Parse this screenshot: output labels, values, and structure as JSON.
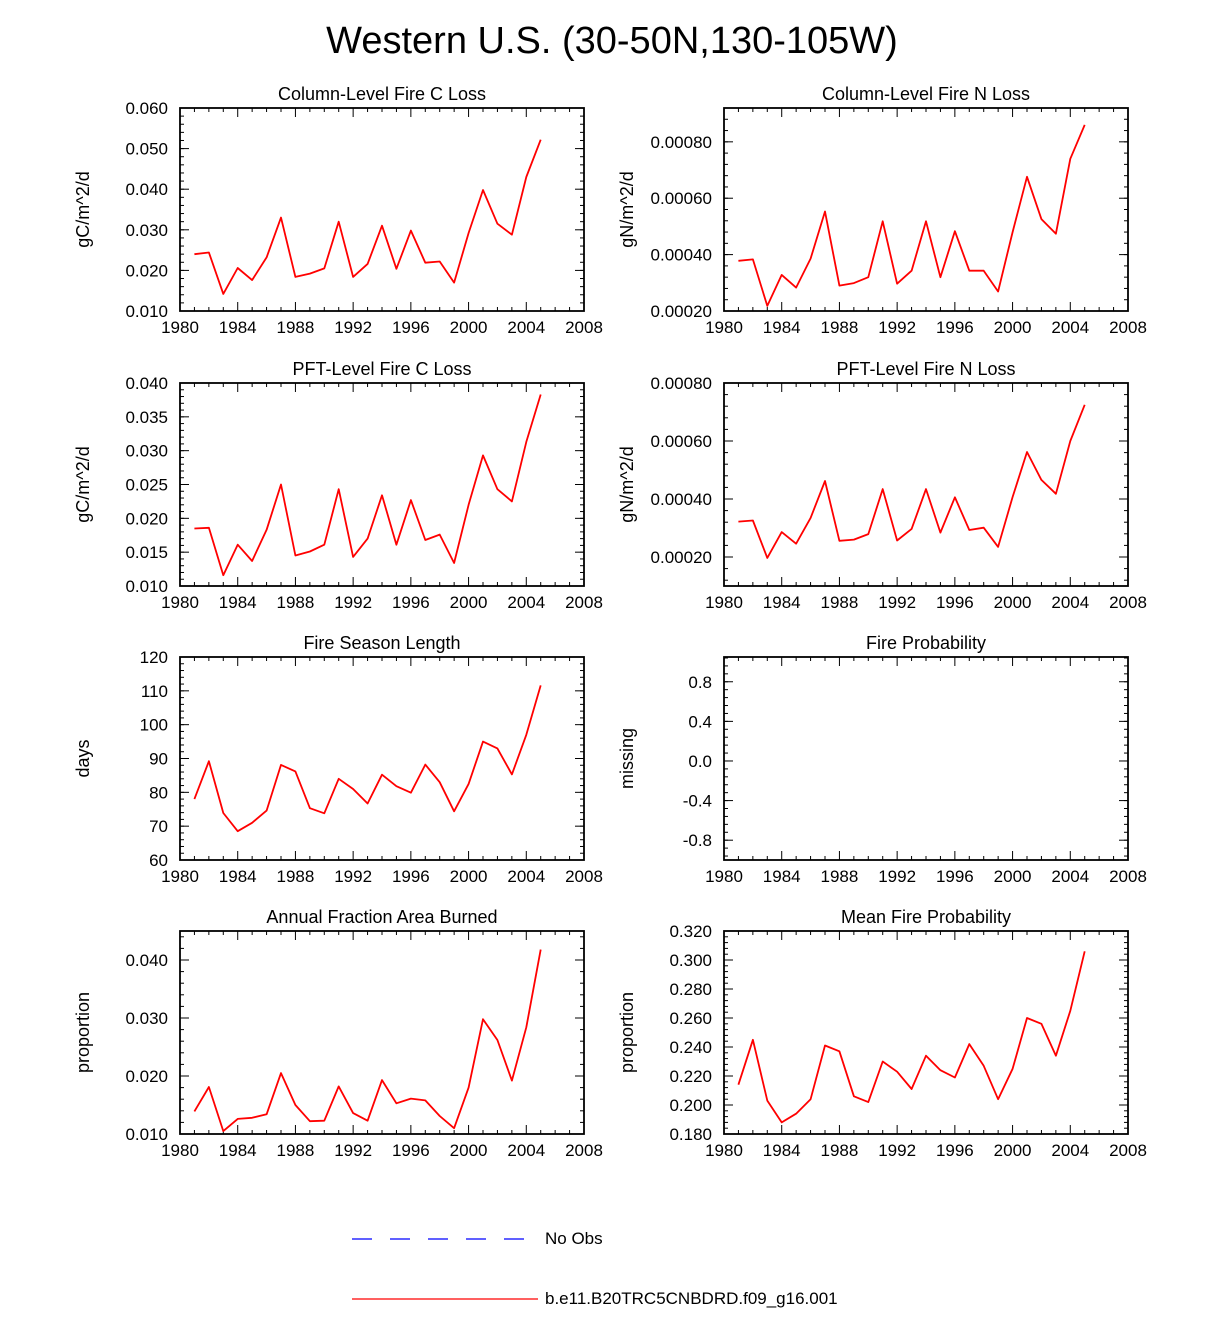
{
  "title": "Western U.S. (30-50N,130-105W)",
  "colors": {
    "model": "#ff0000",
    "obs": "#0000ff",
    "axis": "#000000"
  },
  "legend": [
    {
      "label": "No Obs",
      "color": "#0000ff",
      "style": "dashed"
    },
    {
      "label": "b.e11.B20TRC5CNBDRD.f09_g16.001",
      "color": "#ff0000",
      "style": "solid"
    }
  ],
  "chart_data": [
    {
      "type": "line",
      "title": "Column-Level Fire C Loss",
      "xlabel": "",
      "ylabel": "gC/m^2/d",
      "xlim": [
        1980,
        2008
      ],
      "ylim": [
        0.01,
        0.06
      ],
      "xticks": [
        "1980",
        "1984",
        "1988",
        "1992",
        "1996",
        "2000",
        "2004",
        "2008"
      ],
      "yticks": [
        "0.010",
        "0.020",
        "0.030",
        "0.040",
        "0.050",
        "0.060"
      ],
      "x": [
        1981,
        1982,
        1983,
        1984,
        1985,
        1986,
        1987,
        1988,
        1989,
        1990,
        1991,
        1992,
        1993,
        1994,
        1995,
        1996,
        1997,
        1998,
        1999,
        2000,
        2001,
        2002,
        2003,
        2004,
        2005
      ],
      "series": [
        {
          "name": "b.e11.B20TRC5CNBDRD.f09_g16.001",
          "values": [
            0.024,
            0.0244,
            0.0142,
            0.0206,
            0.0176,
            0.0232,
            0.033,
            0.0184,
            0.0192,
            0.0205,
            0.032,
            0.0184,
            0.0216,
            0.031,
            0.0204,
            0.0298,
            0.0219,
            0.0222,
            0.017,
            0.0292,
            0.0398,
            0.0315,
            0.0288,
            0.043,
            0.0522
          ]
        }
      ]
    },
    {
      "type": "line",
      "title": "Column-Level Fire N Loss",
      "xlabel": "",
      "ylabel": "gN/m^2/d",
      "xlim": [
        1980,
        2008
      ],
      "ylim": [
        0.0002,
        0.00092
      ],
      "xticks": [
        "1980",
        "1984",
        "1988",
        "1992",
        "1996",
        "2000",
        "2004",
        "2008"
      ],
      "yticks": [
        "0.00020",
        "0.00040",
        "0.00060",
        "0.00080"
      ],
      "x": [
        1981,
        1982,
        1983,
        1984,
        1985,
        1986,
        1987,
        1988,
        1989,
        1990,
        1991,
        1992,
        1993,
        1994,
        1995,
        1996,
        1997,
        1998,
        1999,
        2000,
        2001,
        2002,
        2003,
        2004,
        2005
      ],
      "series": [
        {
          "name": "b.e11.B20TRC5CNBDRD.f09_g16.001",
          "values": [
            0.000378,
            0.000383,
            0.000218,
            0.000328,
            0.000283,
            0.000386,
            0.000553,
            0.00029,
            0.000299,
            0.00032,
            0.000518,
            0.000297,
            0.000343,
            0.000518,
            0.00032,
            0.000483,
            0.000343,
            0.000343,
            0.000269,
            0.00048,
            0.000676,
            0.000526,
            0.000474,
            0.00074,
            0.00086
          ]
        }
      ]
    },
    {
      "type": "line",
      "title": "PFT-Level Fire C Loss",
      "xlabel": "",
      "ylabel": "gC/m^2/d",
      "xlim": [
        1980,
        2008
      ],
      "ylim": [
        0.01,
        0.04
      ],
      "xticks": [
        "1980",
        "1984",
        "1988",
        "1992",
        "1996",
        "2000",
        "2004",
        "2008"
      ],
      "yticks": [
        "0.010",
        "0.015",
        "0.020",
        "0.025",
        "0.030",
        "0.035",
        "0.040"
      ],
      "x": [
        1981,
        1982,
        1983,
        1984,
        1985,
        1986,
        1987,
        1988,
        1989,
        1990,
        1991,
        1992,
        1993,
        1994,
        1995,
        1996,
        1997,
        1998,
        1999,
        2000,
        2001,
        2002,
        2003,
        2004,
        2005
      ],
      "series": [
        {
          "name": "b.e11.B20TRC5CNBDRD.f09_g16.001",
          "values": [
            0.0185,
            0.0186,
            0.0116,
            0.0161,
            0.0137,
            0.0183,
            0.025,
            0.0145,
            0.0151,
            0.0161,
            0.0243,
            0.0143,
            0.017,
            0.0234,
            0.0161,
            0.0227,
            0.0168,
            0.0176,
            0.0134,
            0.022,
            0.0293,
            0.0243,
            0.0225,
            0.0313,
            0.0383
          ]
        }
      ]
    },
    {
      "type": "line",
      "title": "PFT-Level Fire N Loss",
      "xlabel": "",
      "ylabel": "gN/m^2/d",
      "xlim": [
        1980,
        2008
      ],
      "ylim": [
        0.0001,
        0.0008
      ],
      "xticks": [
        "1980",
        "1984",
        "1988",
        "1992",
        "1996",
        "2000",
        "2004",
        "2008"
      ],
      "yticks": [
        "0.00020",
        "0.00040",
        "0.00060",
        "0.00080"
      ],
      "x": [
        1981,
        1982,
        1983,
        1984,
        1985,
        1986,
        1987,
        1988,
        1989,
        1990,
        1991,
        1992,
        1993,
        1994,
        1995,
        1996,
        1997,
        1998,
        1999,
        2000,
        2001,
        2002,
        2003,
        2004,
        2005
      ],
      "series": [
        {
          "name": "b.e11.B20TRC5CNBDRD.f09_g16.001",
          "values": [
            0.000322,
            0.000326,
            0.000197,
            0.000286,
            0.000246,
            0.000335,
            0.000462,
            0.000256,
            0.00026,
            0.000279,
            0.000434,
            0.000257,
            0.000297,
            0.000434,
            0.000284,
            0.000406,
            0.000293,
            0.000301,
            0.000235,
            0.000407,
            0.000562,
            0.000466,
            0.000418,
            0.0006,
            0.000725
          ]
        }
      ]
    },
    {
      "type": "line",
      "title": "Fire Season Length",
      "xlabel": "",
      "ylabel": "days",
      "xlim": [
        1980,
        2008
      ],
      "ylim": [
        60,
        120
      ],
      "xticks": [
        "1980",
        "1984",
        "1988",
        "1992",
        "1996",
        "2000",
        "2004",
        "2008"
      ],
      "yticks": [
        "60",
        "70",
        "80",
        "90",
        "100",
        "110",
        "120"
      ],
      "x": [
        1981,
        1982,
        1983,
        1984,
        1985,
        1986,
        1987,
        1988,
        1989,
        1990,
        1991,
        1992,
        1993,
        1994,
        1995,
        1996,
        1997,
        1998,
        1999,
        2000,
        2001,
        2002,
        2003,
        2004,
        2005
      ],
      "series": [
        {
          "name": "b.e11.B20TRC5CNBDRD.f09_g16.001",
          "values": [
            78.0,
            89.2,
            73.9,
            68.5,
            71.0,
            74.6,
            88.1,
            86.2,
            75.3,
            73.8,
            84.0,
            81.0,
            76.7,
            85.2,
            81.8,
            79.9,
            88.2,
            83.0,
            74.4,
            82.5,
            95.0,
            93.0,
            85.3,
            97.0,
            111.6
          ]
        }
      ]
    },
    {
      "type": "line",
      "title": "Fire Probability",
      "xlabel": "",
      "ylabel": "missing",
      "xlim": [
        1980,
        2008
      ],
      "ylim": [
        -1,
        1.05
      ],
      "xticks": [
        "1980",
        "1984",
        "1988",
        "1992",
        "1996",
        "2000",
        "2004",
        "2008"
      ],
      "yticks": [
        "-0.8",
        "-0.4",
        "0.0",
        "0.4",
        "0.8"
      ],
      "x": [],
      "series": []
    },
    {
      "type": "line",
      "title": "Annual Fraction Area Burned",
      "xlabel": "",
      "ylabel": "proportion",
      "xlim": [
        1980,
        2008
      ],
      "ylim": [
        0.01,
        0.045
      ],
      "xticks": [
        "1980",
        "1984",
        "1988",
        "1992",
        "1996",
        "2000",
        "2004",
        "2008"
      ],
      "yticks": [
        "0.010",
        "0.020",
        "0.030",
        "0.040"
      ],
      "x": [
        1981,
        1982,
        1983,
        1984,
        1985,
        1986,
        1987,
        1988,
        1989,
        1990,
        1991,
        1992,
        1993,
        1994,
        1995,
        1996,
        1997,
        1998,
        1999,
        2000,
        2001,
        2002,
        2003,
        2004,
        2005
      ],
      "series": [
        {
          "name": "b.e11.B20TRC5CNBDRD.f09_g16.001",
          "values": [
            0.0139,
            0.0181,
            0.0105,
            0.0126,
            0.0128,
            0.0134,
            0.0205,
            0.015,
            0.0122,
            0.0123,
            0.0182,
            0.0136,
            0.0123,
            0.0193,
            0.0153,
            0.0161,
            0.0158,
            0.0131,
            0.011,
            0.018,
            0.0298,
            0.0262,
            0.0192,
            0.0284,
            0.0418
          ]
        }
      ]
    },
    {
      "type": "line",
      "title": "Mean Fire Probability",
      "xlabel": "",
      "ylabel": "proportion",
      "xlim": [
        1980,
        2008
      ],
      "ylim": [
        0.18,
        0.32
      ],
      "xticks": [
        "1980",
        "1984",
        "1988",
        "1992",
        "1996",
        "2000",
        "2004",
        "2008"
      ],
      "yticks": [
        "0.180",
        "0.200",
        "0.220",
        "0.240",
        "0.260",
        "0.280",
        "0.300",
        "0.320"
      ],
      "x": [
        1981,
        1982,
        1983,
        1984,
        1985,
        1986,
        1987,
        1988,
        1989,
        1990,
        1991,
        1992,
        1993,
        1994,
        1995,
        1996,
        1997,
        1998,
        1999,
        2000,
        2001,
        2002,
        2003,
        2004,
        2005
      ],
      "series": [
        {
          "name": "b.e11.B20TRC5CNBDRD.f09_g16.001",
          "values": [
            0.214,
            0.245,
            0.203,
            0.188,
            0.194,
            0.204,
            0.241,
            0.237,
            0.206,
            0.202,
            0.23,
            0.223,
            0.211,
            0.234,
            0.224,
            0.219,
            0.242,
            0.227,
            0.204,
            0.225,
            0.26,
            0.256,
            0.234,
            0.265,
            0.306
          ]
        }
      ]
    }
  ]
}
